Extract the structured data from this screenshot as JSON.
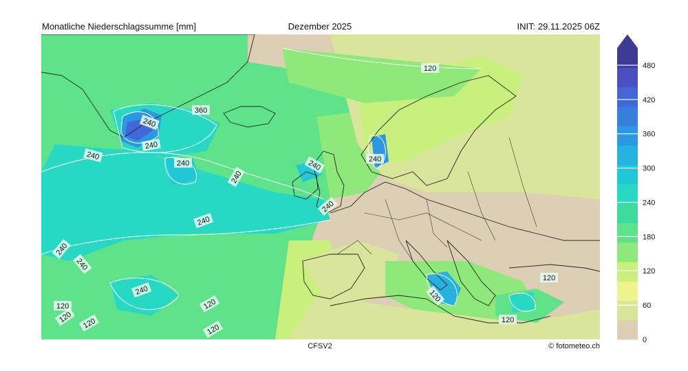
{
  "header": {
    "left": "Monatliche Niederschlagssumme [mm]",
    "center": "Dezember 2025",
    "right": "INIT: 29.11.2025 06Z"
  },
  "footer": {
    "model": "CFSV2",
    "credit": "© fotometeo.ch"
  },
  "colorbar": {
    "ticks": [
      "0",
      "60",
      "120",
      "180",
      "240",
      "300",
      "360",
      "420",
      "480"
    ],
    "colors": [
      "#dccfb4",
      "#d9e59a",
      "#eef38a",
      "#c9f07c",
      "#8ee87a",
      "#5fe38a",
      "#3ddba0",
      "#27d9c3",
      "#21c9d6",
      "#25b2e0",
      "#2c97e2",
      "#377fdf",
      "#4267d6",
      "#4a4fc2",
      "#3d3b96"
    ]
  },
  "contour_labels": [
    "120",
    "240",
    "360",
    "240",
    "240",
    "240",
    "240",
    "240",
    "240",
    "240",
    "240",
    "120",
    "240",
    "240",
    "240",
    "120",
    "120",
    "120",
    "120",
    "120",
    "120",
    "120"
  ]
}
